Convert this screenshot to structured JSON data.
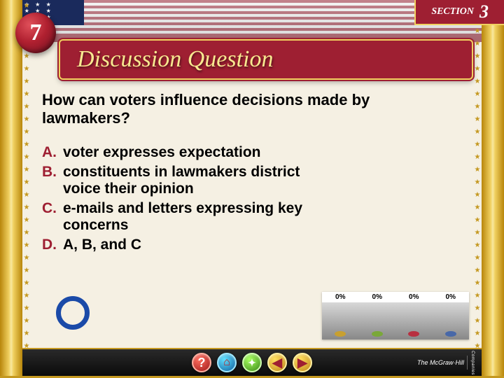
{
  "section": {
    "label": "SECTION",
    "number": "3"
  },
  "chapter": "7",
  "title": "Discussion Question",
  "question": "How can voters influence decisions made by lawmakers?",
  "options": [
    {
      "letter": "A.",
      "text": "voter expresses expectation"
    },
    {
      "letter": "B.",
      "text": "constituents in lawmakers district voice their opinion"
    },
    {
      "letter": "C.",
      "text": "e-mails and letters expressing key concerns"
    },
    {
      "letter": "D.",
      "text": "A, B, and C"
    }
  ],
  "poll": {
    "values": [
      "0%",
      "0%",
      "0%",
      "0%"
    ],
    "colors": [
      "#c8a030",
      "#7aa838",
      "#b83040",
      "#4868a8"
    ]
  },
  "nav": {
    "help": "?",
    "home": "⌂",
    "tool": "✦",
    "back": "◀",
    "next": "▶"
  },
  "publisher": {
    "name": "The McGraw·Hill",
    "vert": "Companies"
  },
  "colors": {
    "brand_red": "#9e1f32",
    "accent_blue": "#1a4aa8"
  }
}
